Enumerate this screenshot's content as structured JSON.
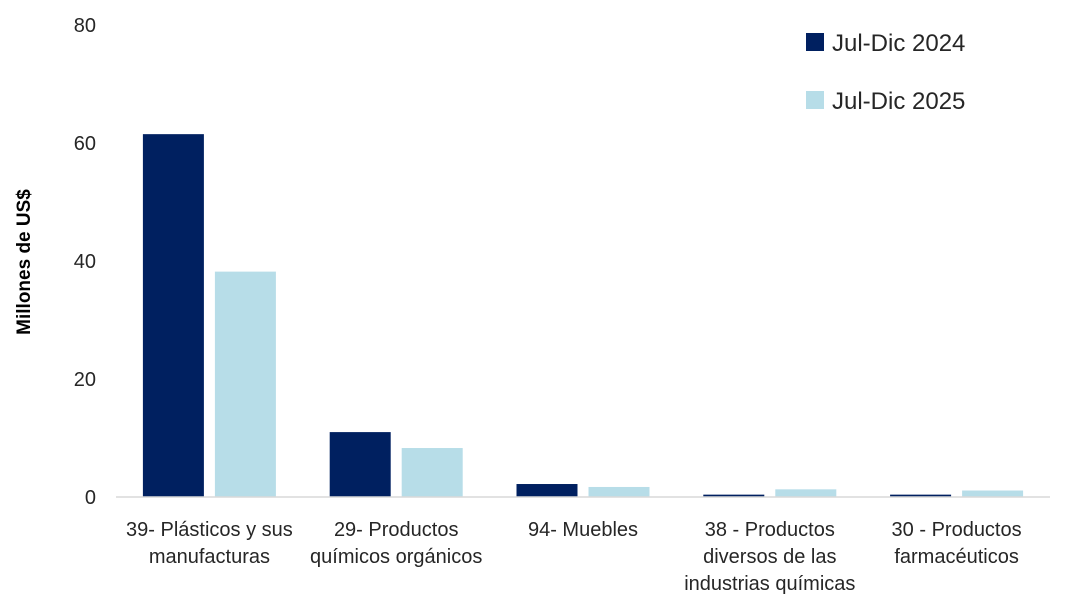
{
  "chart_data": {
    "type": "bar",
    "title": "",
    "xlabel": "",
    "ylabel": "Millones de US$",
    "ylim": [
      0,
      80
    ],
    "yticks": [
      "0",
      "20",
      "40",
      "60",
      "80"
    ],
    "grid": false,
    "legend_position": "top-right",
    "categories": [
      [
        "39- Plásticos y sus",
        "manufacturas"
      ],
      [
        "29- Productos",
        "químicos orgánicos"
      ],
      [
        "94- Muebles"
      ],
      [
        "38 - Productos",
        "diversos de las",
        "industrias químicas"
      ],
      [
        "30 - Productos",
        "farmacéuticos"
      ]
    ],
    "series": [
      {
        "name": "Jul-Dic 2024",
        "color": "#002060",
        "values": [
          61.5,
          11.0,
          2.2,
          0.4,
          0.4
        ]
      },
      {
        "name": "Jul-Dic 2025",
        "color": "#b7dde8",
        "values": [
          38.2,
          8.3,
          1.7,
          1.3,
          1.1
        ]
      }
    ]
  }
}
